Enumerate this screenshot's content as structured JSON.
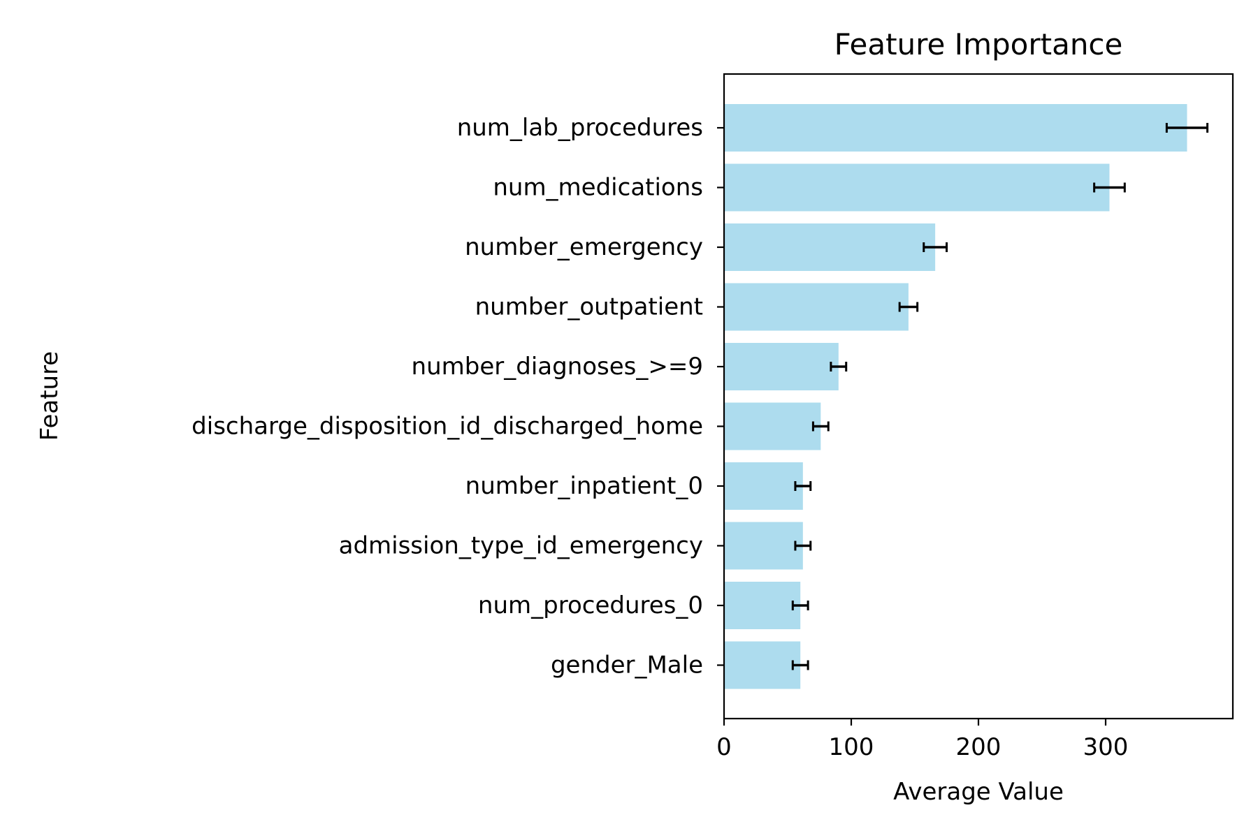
{
  "chart_data": {
    "type": "bar",
    "orientation": "horizontal",
    "title": "Feature Importance",
    "xlabel": "Average Value",
    "ylabel": "Feature",
    "xlim": [
      0,
      400
    ],
    "xticks": [
      0,
      100,
      200,
      300
    ],
    "grid": false,
    "bar_color": "#ADDCEE",
    "errorbar_color": "#000000",
    "categories": [
      "num_lab_procedures",
      "num_medications",
      "number_emergency",
      "number_outpatient",
      "number_diagnoses_>=9",
      "discharge_disposition_id_discharged_home",
      "number_inpatient_0",
      "admission_type_id_emergency",
      "num_procedures_0",
      "gender_Male"
    ],
    "values": [
      364,
      303,
      166,
      145,
      90,
      76,
      62,
      62,
      60,
      60
    ],
    "errors": [
      16,
      12,
      9,
      7,
      6,
      6,
      6,
      6,
      6,
      6
    ]
  }
}
